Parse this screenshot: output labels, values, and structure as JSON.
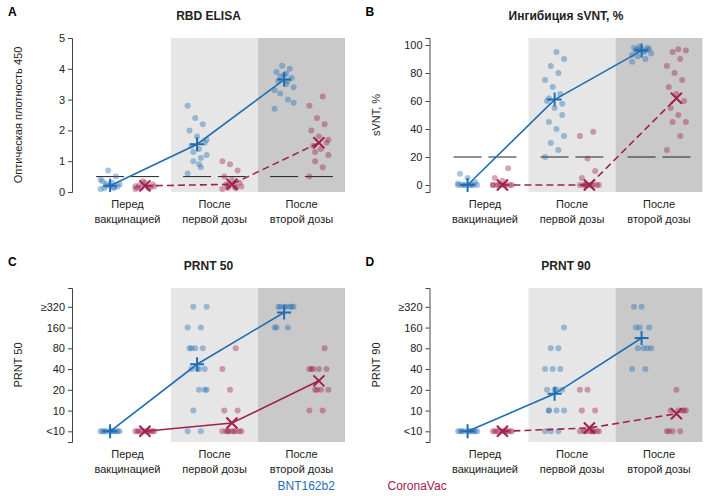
{
  "chart_data": [
    {
      "type": "scatter",
      "panel": "A",
      "title": "RBD ELISA",
      "y_label": "Оптическая плотность 450",
      "categories": [
        "Перед\nвакцинацией",
        "После\nпервой дозы",
        "После\nвторой дозы"
      ],
      "ylim": [
        0,
        5
      ],
      "yticks": [
        0,
        1,
        2,
        3,
        4,
        5
      ],
      "threshold": 0.5,
      "legend": "bottom",
      "series": [
        {
          "name": "BNT162b2",
          "color": "#1f6db3",
          "marker": "plus",
          "line_style": "solid",
          "values": [
            0.2,
            1.55,
            3.65
          ],
          "points": [
            [
              0.1,
              0.15,
              0.2,
              0.25,
              0.3,
              0.12,
              0.18,
              0.22,
              0.35,
              0.5,
              0.7,
              0.4,
              0.14,
              0.28
            ],
            [
              0.6,
              0.8,
              1.0,
              1.2,
              1.4,
              1.5,
              1.6,
              1.8,
              2.0,
              2.2,
              2.4,
              2.8,
              1.1,
              1.3,
              1.7,
              0.9
            ],
            [
              2.7,
              3.0,
              3.2,
              3.4,
              3.5,
              3.6,
              3.7,
              3.8,
              3.9,
              4.0,
              4.1,
              3.3,
              3.6,
              3.75,
              2.9,
              3.85
            ]
          ]
        },
        {
          "name": "CoronaVac",
          "color": "#a0204d",
          "marker": "cross",
          "line_style": "dashed",
          "values": [
            0.2,
            0.25,
            1.6
          ],
          "points": [
            [
              0.1,
              0.12,
              0.15,
              0.18,
              0.2,
              0.22,
              0.25,
              0.3,
              0.14,
              0.16,
              0.35,
              0.19
            ],
            [
              0.1,
              0.12,
              0.15,
              0.18,
              0.2,
              0.25,
              0.3,
              0.4,
              0.5,
              0.7,
              0.9,
              1.0,
              0.16,
              0.22
            ],
            [
              0.5,
              0.8,
              1.0,
              1.2,
              1.4,
              1.5,
              1.6,
              1.8,
              2.0,
              2.2,
              2.4,
              2.8,
              3.1,
              1.3,
              1.7
            ]
          ]
        }
      ]
    },
    {
      "type": "scatter",
      "panel": "B",
      "title": "Ингибиция sVNT, %",
      "y_label": "sVNT, %",
      "categories": [
        "Перед\nвакцинацией",
        "После\nпервой дозы",
        "После\nвторой дозы"
      ],
      "ylim": [
        -5,
        105
      ],
      "yticks": [
        0,
        20,
        40,
        60,
        80,
        100
      ],
      "threshold": 20,
      "series": [
        {
          "name": "BNT162b2",
          "color": "#1f6db3",
          "marker": "plus",
          "line_style": "solid",
          "values": [
            0,
            61,
            96
          ],
          "points": [
            [
              0,
              0,
              0,
              0,
              0,
              0,
              2,
              5,
              8,
              0,
              0,
              1
            ],
            [
              20,
              25,
              30,
              35,
              40,
              45,
              50,
              55,
              60,
              65,
              70,
              75,
              80,
              85,
              90,
              95,
              62,
              58
            ],
            [
              88,
              90,
              92,
              94,
              95,
              96,
              97,
              97,
              98,
              98,
              99,
              93,
              96,
              97
            ]
          ]
        },
        {
          "name": "CoronaVac",
          "color": "#a0204d",
          "marker": "cross",
          "line_style": "dashed",
          "values": [
            0,
            0,
            62
          ],
          "points": [
            [
              0,
              0,
              0,
              0,
              0,
              0,
              0,
              3,
              5,
              12,
              0,
              0
            ],
            [
              0,
              0,
              0,
              0,
              0,
              0,
              0,
              0,
              5,
              10,
              19,
              35,
              38,
              0
            ],
            [
              25,
              35,
              45,
              45,
              50,
              55,
              60,
              65,
              70,
              75,
              80,
              85,
              90,
              95,
              96,
              97
            ]
          ]
        }
      ]
    },
    {
      "type": "scatter",
      "panel": "C",
      "title": "PRNT 50",
      "y_label": "PRNT 50",
      "categories": [
        "Перед\nвакцинацией",
        "После\nпервой дозы",
        "После\nвторой дозы"
      ],
      "log": "y",
      "ylim": [
        3.5,
        600
      ],
      "yticks": [
        {
          "value": 5,
          "label": "<10"
        },
        10,
        20,
        40,
        80,
        160,
        {
          "value": 320,
          "label": "≥320"
        }
      ],
      "series": [
        {
          "name": "BNT162b2",
          "color": "#1f6db3",
          "marker": "plus",
          "line_style": "solid",
          "values": [
            5,
            47,
            265
          ],
          "points": [
            [
              5,
              5,
              5,
              5,
              5,
              5,
              5,
              5,
              5,
              5
            ],
            [
              5,
              5,
              10,
              20,
              20,
              40,
              40,
              40,
              80,
              80,
              80,
              160,
              160,
              320,
              320,
              40,
              80,
              20
            ],
            [
              160,
              160,
              320,
              320,
              320,
              320,
              320,
              320,
              160,
              320
            ]
          ]
        },
        {
          "name": "CoronaVac",
          "color": "#a0204d",
          "marker": "cross",
          "line_style": "solid",
          "values": [
            5,
            6.6,
            27
          ],
          "points": [
            [
              5,
              5,
              5,
              5,
              5,
              5,
              5,
              5,
              5,
              5
            ],
            [
              5,
              5,
              5,
              5,
              5,
              5,
              5,
              5,
              10,
              10,
              20,
              40,
              80,
              5
            ],
            [
              10,
              10,
              20,
              20,
              20,
              40,
              40,
              40,
              40,
              80,
              20,
              40
            ]
          ]
        }
      ]
    },
    {
      "type": "scatter",
      "panel": "D",
      "title": "PRNT 90",
      "y_label": "PRNT 90",
      "categories": [
        "Перед\nвакцинацией",
        "После\nпервой дозы",
        "После\nвторой дозы"
      ],
      "log": "y",
      "ylim": [
        3.5,
        600
      ],
      "yticks": [
        {
          "value": 5,
          "label": "<10"
        },
        10,
        20,
        40,
        80,
        160,
        {
          "value": 320,
          "label": "≥320"
        }
      ],
      "series": [
        {
          "name": "BNT162b2",
          "color": "#1f6db3",
          "marker": "plus",
          "line_style": "solid",
          "values": [
            5,
            17.5,
            113
          ],
          "points": [
            [
              5,
              5,
              5,
              5,
              5,
              5,
              5,
              5,
              5,
              5
            ],
            [
              5,
              5,
              5,
              10,
              10,
              10,
              20,
              20,
              20,
              40,
              40,
              40,
              80,
              80,
              160,
              20,
              10
            ],
            [
              40,
              40,
              80,
              80,
              80,
              160,
              160,
              320,
              320,
              80,
              160
            ]
          ]
        },
        {
          "name": "CoronaVac",
          "color": "#a0204d",
          "marker": "cross",
          "line_style": "dashed",
          "values": [
            5,
            5.6,
            9
          ],
          "points": [
            [
              5,
              5,
              5,
              5,
              5,
              5,
              5,
              5,
              5,
              5
            ],
            [
              5,
              5,
              5,
              5,
              5,
              5,
              5,
              5,
              10,
              10,
              20,
              20,
              5
            ],
            [
              5,
              5,
              5,
              10,
              10,
              10,
              10,
              20,
              5,
              10
            ]
          ]
        }
      ]
    }
  ]
}
